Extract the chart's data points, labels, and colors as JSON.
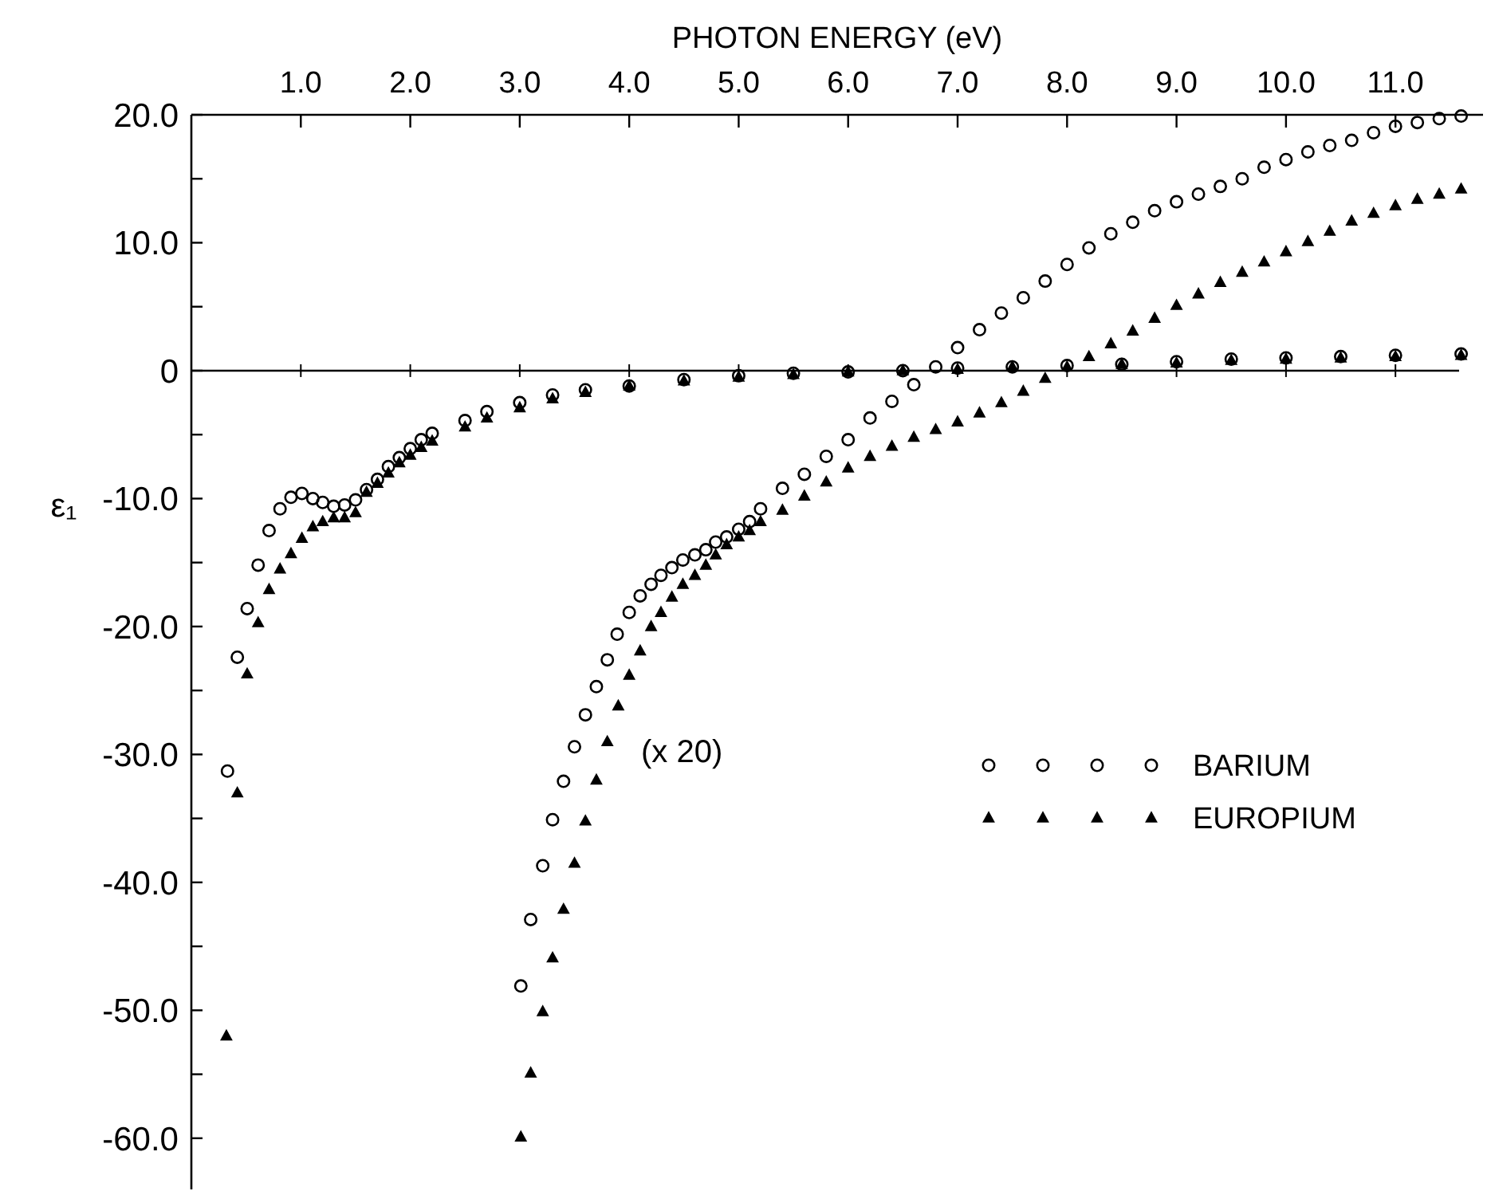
{
  "chart_data": {
    "type": "scatter",
    "xlabel": "PHOTON ENERGY (eV)",
    "ylabel": "ε₁",
    "xlim": [
      0,
      11.8
    ],
    "ylim": [
      -64,
      20
    ],
    "xticks": [
      {
        "value": 1,
        "label": "1.0"
      },
      {
        "value": 2,
        "label": "2.0"
      },
      {
        "value": 3,
        "label": "3.0"
      },
      {
        "value": 4,
        "label": "4.0"
      },
      {
        "value": 5,
        "label": "5.0"
      },
      {
        "value": 6,
        "label": "6.0"
      },
      {
        "value": 7,
        "label": "7.0"
      },
      {
        "value": 8,
        "label": "8.0"
      },
      {
        "value": 9,
        "label": "9.0"
      },
      {
        "value": 10,
        "label": "10.0"
      },
      {
        "value": 11,
        "label": "11.0"
      }
    ],
    "yticks": [
      {
        "value": 20,
        "label": "20.0"
      },
      {
        "value": 15,
        "label": null
      },
      {
        "value": 10,
        "label": "10.0"
      },
      {
        "value": 5,
        "label": null
      },
      0,
      {
        "value": -5,
        "label": null
      },
      {
        "value": -10,
        "label": "-10.0"
      },
      {
        "value": -15,
        "label": null
      },
      {
        "value": -20,
        "label": "-20.0"
      },
      {
        "value": -25,
        "label": null
      },
      {
        "value": -30,
        "label": "-30.0"
      },
      {
        "value": -35,
        "label": null
      },
      {
        "value": -40,
        "label": "-40.0"
      },
      {
        "value": -45,
        "label": null
      },
      {
        "value": -50,
        "label": "-50.0"
      },
      {
        "value": -55,
        "label": null
      },
      {
        "value": -60,
        "label": "-60.0"
      }
    ],
    "ref_lines": [
      {
        "axis": "y",
        "value": 0
      }
    ],
    "grid": false,
    "legend": "right",
    "annotations": [
      "(x 20)"
    ],
    "series": [
      {
        "name": "BARIUM",
        "color": "#000000",
        "marker": "circle",
        "x": [
          0.33,
          0.42,
          0.51,
          0.61,
          0.71,
          0.81,
          0.91,
          1.01,
          1.11,
          1.2,
          1.3,
          1.4,
          1.5,
          1.6,
          1.7,
          1.8,
          1.9,
          2.0,
          2.1,
          2.2,
          2.5,
          2.7,
          3.0,
          3.3,
          3.6,
          4.0,
          4.5,
          5.0,
          5.5,
          6.0,
          6.5,
          7.0,
          7.5,
          8.0,
          8.5,
          9.0,
          9.5,
          10.0,
          10.5,
          11.0,
          11.6
        ],
        "values": [
          -31.3,
          -22.4,
          -18.6,
          -15.2,
          -12.5,
          -10.8,
          -9.9,
          -9.6,
          -10.0,
          -10.3,
          -10.6,
          -10.5,
          -10.1,
          -9.3,
          -8.5,
          -7.5,
          -6.8,
          -6.1,
          -5.4,
          -4.9,
          -3.9,
          -3.2,
          -2.5,
          -1.9,
          -1.5,
          -1.2,
          -0.7,
          -0.4,
          -0.2,
          -0.1,
          0.0,
          0.2,
          0.3,
          0.4,
          0.5,
          0.7,
          0.9,
          1.0,
          1.1,
          1.2,
          1.3
        ]
      },
      {
        "name": "EUROPIUM",
        "color": "#000000",
        "marker": "triangle",
        "x": [
          0.32,
          0.42,
          0.51,
          0.61,
          0.71,
          0.81,
          0.91,
          1.01,
          1.11,
          1.2,
          1.3,
          1.4,
          1.5,
          1.6,
          1.7,
          1.8,
          1.9,
          2.0,
          2.1,
          2.2,
          2.5,
          2.7,
          3.0,
          3.3,
          3.6,
          4.0,
          4.5,
          5.0,
          5.5,
          6.0,
          6.5,
          7.0,
          7.5,
          8.5,
          9.0,
          9.5,
          10.0,
          10.5,
          11.0,
          11.6
        ],
        "values": [
          -52.0,
          -33.0,
          -23.7,
          -19.7,
          -17.1,
          -15.5,
          -14.3,
          -13.1,
          -12.2,
          -11.8,
          -11.5,
          -11.5,
          -11.1,
          -9.5,
          -8.8,
          -8.0,
          -7.2,
          -6.6,
          -6.0,
          -5.5,
          -4.4,
          -3.7,
          -2.9,
          -2.2,
          -1.7,
          -1.2,
          -0.8,
          -0.5,
          -0.3,
          -0.1,
          0.0,
          0.1,
          0.3,
          0.5,
          0.6,
          0.8,
          0.9,
          1.0,
          1.1,
          1.2
        ]
      },
      {
        "color": "#000000",
        "marker": "circle",
        "x": [
          3.01,
          3.1,
          3.21,
          3.3,
          3.4,
          3.5,
          3.6,
          3.7,
          3.8,
          3.89,
          4.0,
          4.1,
          4.2,
          4.29,
          4.39,
          4.49,
          4.6,
          4.7,
          4.79,
          4.89,
          5.0,
          5.1,
          5.2,
          5.4,
          5.6,
          5.8,
          6.0,
          6.2,
          6.4,
          6.6,
          6.8,
          7.0,
          7.2,
          7.4,
          7.6,
          7.8,
          8.0,
          8.2,
          8.4,
          8.6,
          8.8,
          9.0,
          9.2,
          9.4,
          9.6,
          9.8,
          10.0,
          10.2,
          10.4,
          10.6,
          10.8,
          11.0,
          11.2,
          11.4,
          11.6
        ],
        "values": [
          -48.1,
          -42.9,
          -38.7,
          -35.1,
          -32.1,
          -29.4,
          -26.9,
          -24.7,
          -22.6,
          -20.6,
          -18.9,
          -17.6,
          -16.7,
          -16.0,
          -15.4,
          -14.8,
          -14.4,
          -14.0,
          -13.4,
          -13.0,
          -12.4,
          -11.8,
          -10.8,
          -9.2,
          -8.1,
          -6.7,
          -5.4,
          -3.7,
          -2.4,
          -1.1,
          0.3,
          1.8,
          3.2,
          4.5,
          5.7,
          7.0,
          8.3,
          9.6,
          10.7,
          11.6,
          12.5,
          13.2,
          13.8,
          14.4,
          15.0,
          15.9,
          16.5,
          17.1,
          17.6,
          18.0,
          18.6,
          19.1,
          19.4,
          19.7,
          19.9
        ]
      },
      {
        "color": "#000000",
        "marker": "triangle",
        "x": [
          3.01,
          3.1,
          3.21,
          3.3,
          3.4,
          3.5,
          3.6,
          3.7,
          3.8,
          3.9,
          4.0,
          4.1,
          4.2,
          4.29,
          4.39,
          4.49,
          4.6,
          4.7,
          4.79,
          4.89,
          5.0,
          5.1,
          5.2,
          5.4,
          5.6,
          5.8,
          6.0,
          6.2,
          6.4,
          6.6,
          6.8,
          7.0,
          7.2,
          7.4,
          7.6,
          7.8,
          8.0,
          8.2,
          8.4,
          8.6,
          8.8,
          9.0,
          9.2,
          9.4,
          9.6,
          9.8,
          10.0,
          10.2,
          10.4,
          10.6,
          10.8,
          11.0,
          11.2,
          11.4,
          11.6
        ],
        "values": [
          -59.9,
          -54.9,
          -50.1,
          -45.9,
          -42.1,
          -38.5,
          -35.2,
          -32.0,
          -29.0,
          -26.2,
          -23.8,
          -21.9,
          -20.0,
          -18.9,
          -17.7,
          -16.7,
          -16.0,
          -15.2,
          -14.4,
          -13.6,
          -13.0,
          -12.5,
          -11.8,
          -10.9,
          -9.8,
          -8.7,
          -7.6,
          -6.7,
          -5.9,
          -5.2,
          -4.6,
          -4.0,
          -3.3,
          -2.5,
          -1.6,
          -0.6,
          0.3,
          1.1,
          2.1,
          3.1,
          4.1,
          5.1,
          6.0,
          6.9,
          7.7,
          8.5,
          9.3,
          10.1,
          10.9,
          11.7,
          12.3,
          12.9,
          13.4,
          13.8,
          14.2
        ]
      }
    ]
  }
}
